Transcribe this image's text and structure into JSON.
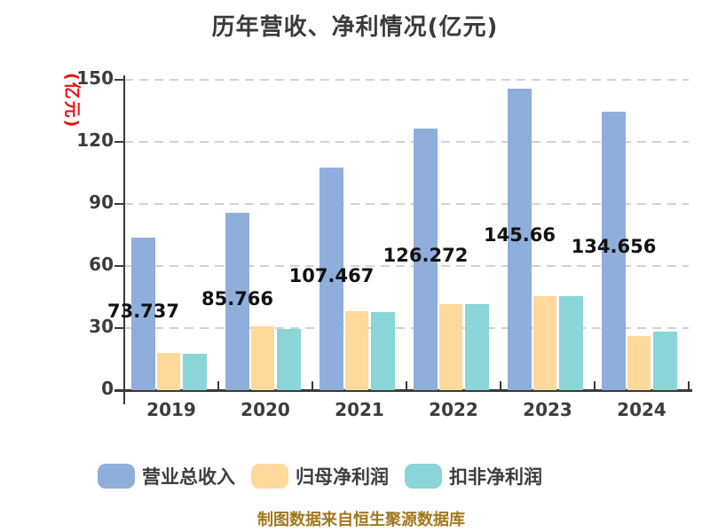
{
  "title": "历年营收、净利情况(亿元)",
  "y_axis": {
    "label": "(亿元)",
    "ticks": [
      0,
      30,
      60,
      90,
      120,
      150
    ],
    "max": 150
  },
  "footer": "制图数据来自恒生聚源数据库",
  "colors": {
    "revenue": "#8FAEDC",
    "net_profit": "#FED99B",
    "deducted_net_profit": "#8AD5D8",
    "axis": "#3a3a3a",
    "grid": "#d2d2d2",
    "y_label_red": "#ee1111",
    "footer_gold": "#a1781e"
  },
  "chart_data": {
    "type": "bar",
    "title": "历年营收、净利情况(亿元)",
    "ylabel": "(亿元)",
    "xlabel": "",
    "categories": [
      "2019",
      "2020",
      "2021",
      "2022",
      "2023",
      "2024"
    ],
    "series": [
      {
        "name": "营业总收入",
        "key": "revenue",
        "color": "#8FAEDC",
        "values": [
          73.737,
          85.766,
          107.467,
          126.272,
          145.66,
          134.656
        ],
        "data_labels": [
          "73.737",
          "85.766",
          "107.467",
          "126.272",
          "145.66",
          "134.656"
        ]
      },
      {
        "name": "归母净利润",
        "key": "net-profit",
        "color": "#FED99B",
        "values": [
          18.0,
          31.0,
          38.0,
          41.5,
          45.5,
          26.0
        ]
      },
      {
        "name": "扣非净利润",
        "key": "deducted-net-profit",
        "color": "#8AD5D8",
        "values": [
          17.5,
          29.5,
          37.8,
          41.5,
          45.5,
          28.5
        ]
      }
    ],
    "ylim": [
      0,
      150
    ],
    "yticks": [
      0,
      30,
      60,
      90,
      120,
      150
    ],
    "grid": "horizontal-dashed",
    "legend_position": "bottom"
  }
}
